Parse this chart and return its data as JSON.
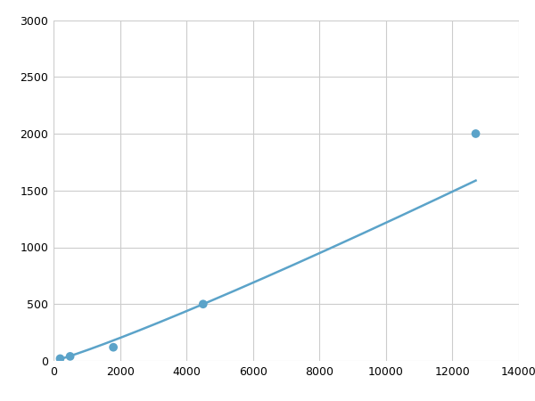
{
  "x_points": [
    200,
    500,
    1800,
    4500,
    12700
  ],
  "y_points": [
    20,
    40,
    120,
    500,
    2000
  ],
  "line_color": "#5BA3C9",
  "marker_color": "#5BA3C9",
  "marker_size": 7,
  "line_width": 1.8,
  "xlim": [
    0,
    14000
  ],
  "ylim": [
    0,
    3000
  ],
  "xticks": [
    0,
    2000,
    4000,
    6000,
    8000,
    10000,
    12000,
    14000
  ],
  "yticks": [
    0,
    500,
    1000,
    1500,
    2000,
    2500,
    3000
  ],
  "grid_color": "#CCCCCC",
  "background_color": "#FFFFFF",
  "figure_background": "#FFFFFF"
}
